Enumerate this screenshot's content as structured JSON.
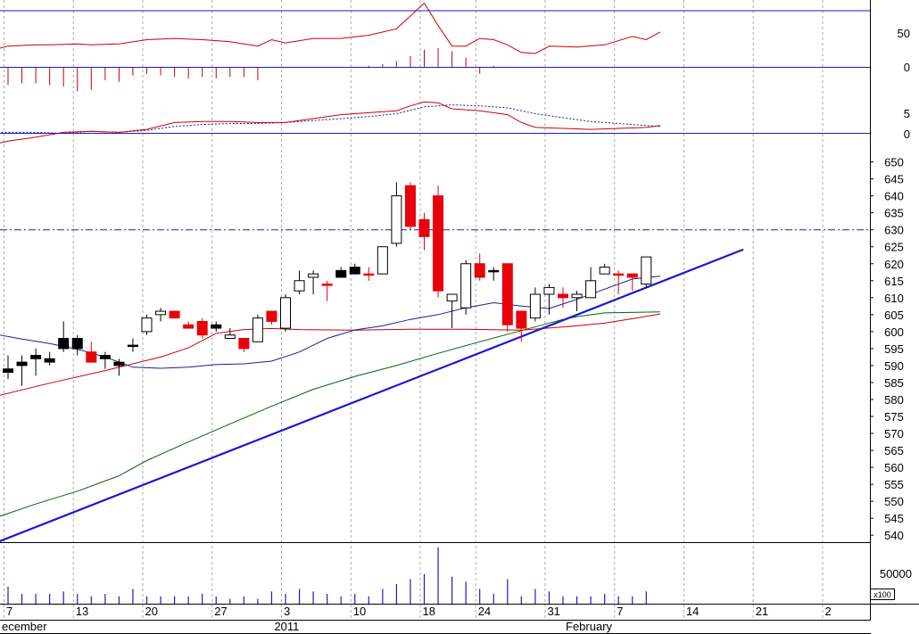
{
  "chart_data": {
    "type": "candlestick",
    "colors": {
      "up": "#ffffff",
      "down_red": "#e8000b",
      "down_black": "#000000",
      "bollinger_mid": "#1a1aa8",
      "ma_long": "#006400",
      "ma_mid": "#cc0000",
      "trendline": "#1a1acc",
      "resistance": "#1a1acc",
      "volume": "#1a1acc",
      "grid": "#aaaaaa"
    },
    "price_axis": {
      "ticks": [
        "650",
        "645",
        "640",
        "635",
        "630",
        "625",
        "620",
        "615",
        "610",
        "605",
        "600",
        "595",
        "590",
        "585",
        "580",
        "575",
        "570",
        "565",
        "560",
        "555",
        "550",
        "545",
        "540"
      ],
      "range": [
        537,
        652
      ],
      "resistance_level": 630
    },
    "volume_axis": {
      "tick": "50000",
      "unit": "x100"
    },
    "oscillator1_axis": {
      "ticks": [
        "50",
        "0"
      ]
    },
    "oscillator2_axis": {
      "ticks": [
        "5",
        "0"
      ]
    },
    "x_labels": [
      {
        "i": 0,
        "label": "7"
      },
      {
        "i": 5,
        "label": "13"
      },
      {
        "i": 10,
        "label": "20"
      },
      {
        "i": 15,
        "label": "27"
      },
      {
        "i": 20,
        "label": "3"
      },
      {
        "i": 25,
        "label": "10"
      },
      {
        "i": 30,
        "label": "18"
      },
      {
        "i": 34,
        "label": "24"
      },
      {
        "i": 39,
        "label": "31"
      },
      {
        "i": 44,
        "label": "7"
      },
      {
        "i": 49,
        "label": "14"
      },
      {
        "i": 54,
        "label": "21"
      },
      {
        "i": 59,
        "label": "2"
      }
    ],
    "month_labels": [
      {
        "i": -1,
        "label": "ecember"
      },
      {
        "i": 19,
        "label": "2011"
      },
      {
        "i": 40,
        "label": "February"
      }
    ],
    "candles": [
      {
        "o": 588,
        "h": 593,
        "l": 586,
        "c": 589,
        "col": "black"
      },
      {
        "o": 591,
        "h": 593,
        "l": 584,
        "c": 590,
        "col": "black"
      },
      {
        "o": 592,
        "h": 595,
        "l": 587,
        "c": 593,
        "col": "black"
      },
      {
        "o": 592,
        "h": 594,
        "l": 590,
        "c": 591,
        "col": "black"
      },
      {
        "o": 598,
        "h": 603,
        "l": 594,
        "c": 595,
        "col": "black"
      },
      {
        "o": 598,
        "h": 599,
        "l": 593,
        "c": 595,
        "col": "black"
      },
      {
        "o": 594,
        "h": 597,
        "l": 591,
        "c": 591,
        "col": "red"
      },
      {
        "o": 593,
        "h": 594,
        "l": 589,
        "c": 592,
        "col": "black"
      },
      {
        "o": 590,
        "h": 592,
        "l": 587,
        "c": 591,
        "col": "black"
      },
      {
        "o": 596,
        "h": 598,
        "l": 594,
        "c": 596,
        "col": "black"
      },
      {
        "o": 600,
        "h": 605,
        "l": 599,
        "c": 604,
        "col": "up"
      },
      {
        "o": 605,
        "h": 607,
        "l": 603,
        "c": 606,
        "col": "up"
      },
      {
        "o": 606,
        "h": 606,
        "l": 604,
        "c": 604,
        "col": "red"
      },
      {
        "o": 602,
        "h": 603,
        "l": 601,
        "c": 601,
        "col": "red"
      },
      {
        "o": 603,
        "h": 604,
        "l": 598,
        "c": 599,
        "col": "red"
      },
      {
        "o": 602,
        "h": 603,
        "l": 600,
        "c": 601,
        "col": "black"
      },
      {
        "o": 599,
        "h": 601,
        "l": 598,
        "c": 598,
        "col": "up"
      },
      {
        "o": 598,
        "h": 598,
        "l": 594,
        "c": 595,
        "col": "red"
      },
      {
        "o": 597,
        "h": 605,
        "l": 597,
        "c": 604,
        "col": "up"
      },
      {
        "o": 606,
        "h": 606,
        "l": 602,
        "c": 603,
        "col": "red"
      },
      {
        "o": 601,
        "h": 611,
        "l": 600,
        "c": 610,
        "col": "up"
      },
      {
        "o": 612,
        "h": 618,
        "l": 611,
        "c": 615,
        "col": "up"
      },
      {
        "o": 616,
        "h": 618,
        "l": 611,
        "c": 617,
        "col": "up"
      },
      {
        "o": 614,
        "h": 615,
        "l": 609,
        "c": 614,
        "col": "red"
      },
      {
        "o": 618,
        "h": 619,
        "l": 616,
        "c": 616,
        "col": "black"
      },
      {
        "o": 619,
        "h": 620,
        "l": 617,
        "c": 617,
        "col": "black"
      },
      {
        "o": 617,
        "h": 619,
        "l": 615,
        "c": 617,
        "col": "red"
      },
      {
        "o": 617,
        "h": 625,
        "l": 617,
        "c": 625,
        "col": "up"
      },
      {
        "o": 626,
        "h": 644,
        "l": 625,
        "c": 640,
        "col": "up"
      },
      {
        "o": 643,
        "h": 644,
        "l": 630,
        "c": 631,
        "col": "red"
      },
      {
        "o": 633,
        "h": 635,
        "l": 624,
        "c": 628,
        "col": "red"
      },
      {
        "o": 640,
        "h": 643,
        "l": 610,
        "c": 612,
        "col": "red"
      },
      {
        "o": 609,
        "h": 611,
        "l": 601,
        "c": 611,
        "col": "up"
      },
      {
        "o": 607,
        "h": 621,
        "l": 605,
        "c": 620,
        "col": "up"
      },
      {
        "o": 620,
        "h": 623,
        "l": 615,
        "c": 616,
        "col": "red"
      },
      {
        "o": 618,
        "h": 619,
        "l": 615,
        "c": 618,
        "col": "black"
      },
      {
        "o": 620,
        "h": 620,
        "l": 600,
        "c": 602,
        "col": "red"
      },
      {
        "o": 606,
        "h": 606,
        "l": 597,
        "c": 601,
        "col": "red"
      },
      {
        "o": 604,
        "h": 613,
        "l": 603,
        "c": 611,
        "col": "up"
      },
      {
        "o": 611,
        "h": 614,
        "l": 605,
        "c": 613,
        "col": "up"
      },
      {
        "o": 611,
        "h": 613,
        "l": 607,
        "c": 610,
        "col": "red"
      },
      {
        "o": 610,
        "h": 612,
        "l": 606,
        "c": 611,
        "col": "up"
      },
      {
        "o": 610,
        "h": 619,
        "l": 610,
        "c": 615,
        "col": "up"
      },
      {
        "o": 617,
        "h": 620,
        "l": 617,
        "c": 619,
        "col": "up"
      },
      {
        "o": 617,
        "h": 618,
        "l": 611,
        "c": 617,
        "col": "red"
      },
      {
        "o": 616,
        "h": 617,
        "l": 612,
        "c": 617,
        "col": "red"
      },
      {
        "o": 614,
        "h": 622,
        "l": 613,
        "c": 622,
        "col": "up"
      }
    ],
    "bollinger_mid": [
      [
        -1,
        599.3
      ],
      [
        1,
        597.8
      ],
      [
        3,
        596.5
      ],
      [
        5,
        594.8
      ],
      [
        7,
        592.5
      ],
      [
        9,
        589.5
      ],
      [
        11,
        589.2
      ],
      [
        13,
        589.5
      ],
      [
        15,
        590.3
      ],
      [
        17,
        590.5
      ],
      [
        19,
        591.3
      ],
      [
        21,
        594
      ],
      [
        23,
        598
      ],
      [
        25,
        600.5
      ],
      [
        27,
        601.7
      ],
      [
        29,
        603.6
      ],
      [
        31,
        605
      ],
      [
        33,
        607
      ],
      [
        35,
        608.5
      ],
      [
        37,
        607.5
      ],
      [
        39,
        606.8
      ],
      [
        41,
        609.5
      ],
      [
        43,
        612.5
      ],
      [
        45,
        615.5
      ],
      [
        47,
        616.3
      ]
    ],
    "ma_mid_red": [
      [
        -1,
        580.8
      ],
      [
        3,
        584.8
      ],
      [
        7,
        588.5
      ],
      [
        11,
        592.5
      ],
      [
        13,
        595.2
      ],
      [
        15,
        599.5
      ],
      [
        17,
        600.6
      ],
      [
        19,
        600.9
      ],
      [
        21,
        600.6
      ],
      [
        25,
        600.4
      ],
      [
        29,
        600.7
      ],
      [
        33,
        600.7
      ],
      [
        37,
        600.4
      ],
      [
        41,
        601.7
      ],
      [
        43,
        602.5
      ],
      [
        45,
        603.8
      ],
      [
        47,
        605.2
      ]
    ],
    "ma_long_green": [
      [
        -1,
        545
      ],
      [
        2,
        549.2
      ],
      [
        5,
        553
      ],
      [
        8,
        557.5
      ],
      [
        10,
        562
      ],
      [
        13,
        567.5
      ],
      [
        16,
        572.8
      ],
      [
        19,
        578
      ],
      [
        22,
        583
      ],
      [
        25,
        586.8
      ],
      [
        28,
        590
      ],
      [
        31,
        593.6
      ],
      [
        34,
        597
      ],
      [
        37,
        600.3
      ],
      [
        40,
        603.6
      ],
      [
        41,
        604.4
      ],
      [
        43,
        605.5
      ],
      [
        47,
        605.8
      ]
    ],
    "trendline": [
      [
        -1,
        537.6
      ],
      [
        53,
        624.2
      ]
    ],
    "volume": [
      {
        "i": -1,
        "v": 0.35
      },
      {
        "i": 0,
        "v": 0.35
      },
      {
        "i": 1,
        "v": 0.2
      },
      {
        "i": 2,
        "v": 0.2
      },
      {
        "i": 3,
        "v": 0.2
      },
      {
        "i": 4,
        "v": 0.25
      },
      {
        "i": 5,
        "v": 0.2
      },
      {
        "i": 6,
        "v": 0.15
      },
      {
        "i": 7,
        "v": 0.2
      },
      {
        "i": 8,
        "v": 0.15
      },
      {
        "i": 9,
        "v": 0.3
      },
      {
        "i": 10,
        "v": 0.15
      },
      {
        "i": 11,
        "v": 0.15
      },
      {
        "i": 12,
        "v": 0.15
      },
      {
        "i": 13,
        "v": 0.15
      },
      {
        "i": 14,
        "v": 0.2
      },
      {
        "i": 15,
        "v": 0.15
      },
      {
        "i": 16,
        "v": 0.1
      },
      {
        "i": 17,
        "v": 0.15
      },
      {
        "i": 18,
        "v": 0.1
      },
      {
        "i": 19,
        "v": 0.25
      },
      {
        "i": 20,
        "v": 0.2
      },
      {
        "i": 21,
        "v": 0.3
      },
      {
        "i": 22,
        "v": 0.25
      },
      {
        "i": 23,
        "v": 0.2
      },
      {
        "i": 24,
        "v": 0.15
      },
      {
        "i": 25,
        "v": 0.2
      },
      {
        "i": 26,
        "v": 0.15
      },
      {
        "i": 27,
        "v": 0.3
      },
      {
        "i": 28,
        "v": 0.4
      },
      {
        "i": 29,
        "v": 0.5
      },
      {
        "i": 30,
        "v": 0.6
      },
      {
        "i": 31,
        "v": 1.15
      },
      {
        "i": 32,
        "v": 0.55
      },
      {
        "i": 33,
        "v": 0.45
      },
      {
        "i": 34,
        "v": 0.3
      },
      {
        "i": 35,
        "v": 0.2
      },
      {
        "i": 36,
        "v": 0.5
      },
      {
        "i": 37,
        "v": 0.15
      },
      {
        "i": 38,
        "v": 0.3
      },
      {
        "i": 39,
        "v": 0.25
      },
      {
        "i": 40,
        "v": 0.15
      },
      {
        "i": 41,
        "v": 0.15
      },
      {
        "i": 42,
        "v": 0.15
      },
      {
        "i": 43,
        "v": 0.2
      },
      {
        "i": 44,
        "v": 0.15
      },
      {
        "i": 45,
        "v": 0.15
      },
      {
        "i": 46,
        "v": 0.25
      }
    ],
    "oscillator1_line": [
      [
        -1,
        0.55
      ],
      [
        0,
        0.66
      ],
      [
        2,
        0.7
      ],
      [
        3,
        0.7
      ],
      [
        5,
        0.73
      ],
      [
        6,
        0.7
      ],
      [
        8,
        0.73
      ],
      [
        10,
        0.86
      ],
      [
        12,
        0.9
      ],
      [
        14,
        0.86
      ],
      [
        16,
        0.8
      ],
      [
        18,
        0.66
      ],
      [
        19,
        0.86
      ],
      [
        20,
        0.76
      ],
      [
        22,
        0.9
      ],
      [
        24,
        0.9
      ],
      [
        26,
        1.0
      ],
      [
        28,
        1.2
      ],
      [
        29,
        1.6
      ],
      [
        30,
        2.0
      ],
      [
        31,
        1.3
      ],
      [
        32,
        0.66
      ],
      [
        33,
        0.66
      ],
      [
        34,
        0.9
      ],
      [
        35,
        0.86
      ],
      [
        36,
        0.7
      ],
      [
        37,
        0.46
      ],
      [
        38,
        0.43
      ],
      [
        39,
        0.66
      ],
      [
        41,
        0.63
      ],
      [
        43,
        0.7
      ],
      [
        45,
        0.96
      ],
      [
        46,
        0.86
      ],
      [
        47,
        1.1
      ]
    ],
    "oscillator1_bars": [
      [
        -1,
        -0.6
      ],
      [
        0,
        -0.55
      ],
      [
        1,
        -0.5
      ],
      [
        2,
        -0.5
      ],
      [
        3,
        -0.55
      ],
      [
        4,
        -0.6
      ],
      [
        5,
        -0.75
      ],
      [
        6,
        -0.7
      ],
      [
        7,
        -0.4
      ],
      [
        8,
        -0.45
      ],
      [
        9,
        -0.25
      ],
      [
        10,
        -0.2
      ],
      [
        11,
        -0.25
      ],
      [
        12,
        -0.3
      ],
      [
        13,
        -0.35
      ],
      [
        14,
        -0.3
      ],
      [
        15,
        -0.35
      ],
      [
        16,
        -0.3
      ],
      [
        17,
        -0.3
      ],
      [
        18,
        -0.4
      ],
      [
        26,
        0.05
      ],
      [
        27,
        0.1
      ],
      [
        28,
        0.2
      ],
      [
        29,
        0.35
      ],
      [
        30,
        0.55
      ],
      [
        31,
        0.6
      ],
      [
        32,
        0.5
      ],
      [
        33,
        0.3
      ],
      [
        34,
        -0.2
      ],
      [
        35,
        0.05
      ]
    ],
    "oscillator2_line": [
      [
        -1,
        -0.55
      ],
      [
        0,
        -0.4
      ],
      [
        2,
        -0.2
      ],
      [
        4,
        0.05
      ],
      [
        6,
        0.1
      ],
      [
        8,
        0.05
      ],
      [
        10,
        0.2
      ],
      [
        12,
        0.55
      ],
      [
        14,
        0.6
      ],
      [
        16,
        0.6
      ],
      [
        18,
        0.55
      ],
      [
        20,
        0.55
      ],
      [
        22,
        0.75
      ],
      [
        24,
        0.95
      ],
      [
        26,
        1.05
      ],
      [
        28,
        1.15
      ],
      [
        29,
        1.4
      ],
      [
        30,
        1.6
      ],
      [
        31,
        1.55
      ],
      [
        32,
        1.25
      ],
      [
        34,
        1.15
      ],
      [
        36,
        0.95
      ],
      [
        37,
        0.55
      ],
      [
        38,
        0.3
      ],
      [
        40,
        0.25
      ],
      [
        42,
        0.2
      ],
      [
        44,
        0.25
      ],
      [
        46,
        0.3
      ],
      [
        47,
        0.4
      ]
    ],
    "oscillator2_signal": [
      [
        -1,
        0.05
      ],
      [
        2,
        0.05
      ],
      [
        4,
        0.0
      ],
      [
        6,
        0.1
      ],
      [
        8,
        0.05
      ],
      [
        10,
        0.15
      ],
      [
        12,
        0.35
      ],
      [
        14,
        0.45
      ],
      [
        16,
        0.5
      ],
      [
        18,
        0.5
      ],
      [
        20,
        0.55
      ],
      [
        22,
        0.65
      ],
      [
        24,
        0.75
      ],
      [
        26,
        0.85
      ],
      [
        28,
        1.0
      ],
      [
        30,
        1.35
      ],
      [
        32,
        1.45
      ],
      [
        34,
        1.4
      ],
      [
        36,
        1.3
      ],
      [
        38,
        1.0
      ],
      [
        40,
        0.8
      ],
      [
        42,
        0.6
      ],
      [
        44,
        0.5
      ],
      [
        46,
        0.4
      ],
      [
        47,
        0.35
      ]
    ]
  }
}
